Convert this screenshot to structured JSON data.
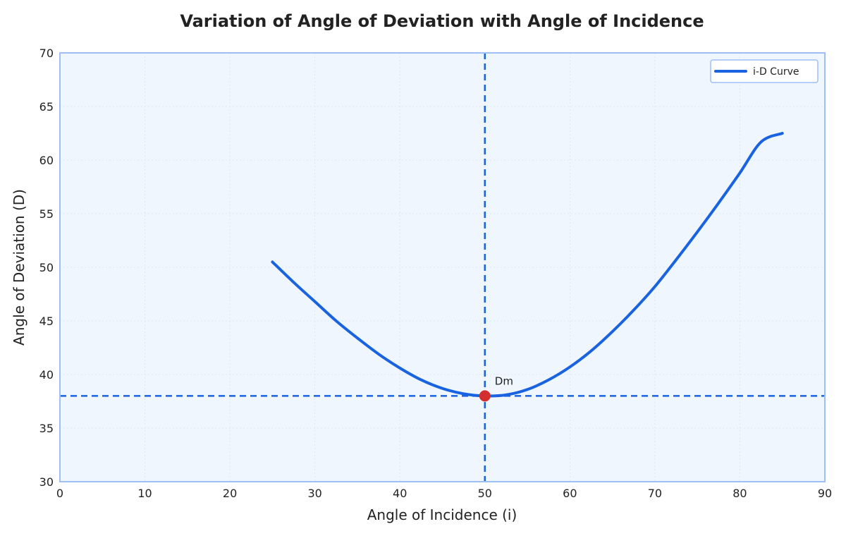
{
  "chart_data": {
    "type": "line",
    "title": "Variation of Angle of Deviation with Angle of Incidence",
    "xlabel": "Angle of Incidence (i)",
    "ylabel": "Angle of Deviation (D)",
    "xlim": [
      0,
      90
    ],
    "ylim": [
      30,
      70
    ],
    "xticks": [
      0,
      10,
      20,
      30,
      40,
      50,
      60,
      70,
      80,
      90
    ],
    "yticks": [
      30,
      35,
      40,
      45,
      50,
      55,
      60,
      65,
      70
    ],
    "grid": true,
    "legend_position": "top-right",
    "series": [
      {
        "name": "i-D Curve",
        "color": "#1a63e0",
        "x": [
          25,
          27.5,
          30,
          32.5,
          35,
          37.5,
          40,
          42.5,
          45,
          47.5,
          50,
          52.5,
          55,
          57.5,
          60,
          62.5,
          65,
          67.5,
          70,
          72.5,
          75,
          77.5,
          80,
          82.5,
          85
        ],
        "y": [
          50.5,
          48.6,
          46.8,
          45.0,
          43.4,
          41.9,
          40.6,
          39.5,
          38.7,
          38.2,
          38.0,
          38.1,
          38.6,
          39.5,
          40.7,
          42.2,
          44.0,
          46.0,
          48.2,
          50.7,
          53.3,
          56.0,
          58.8,
          61.7,
          62.5
        ]
      }
    ],
    "reference_lines": {
      "vertical_x": 50,
      "horizontal_y": 38,
      "color": "#1a63e0",
      "style": "dashed"
    },
    "minimum_point": {
      "x": 50,
      "y": 38,
      "label": "Dm",
      "color": "#d32f2f"
    }
  },
  "colors": {
    "plot_background": "#f0f6fe",
    "plot_border": "#9dbff5",
    "grid": "#dde6f2"
  }
}
